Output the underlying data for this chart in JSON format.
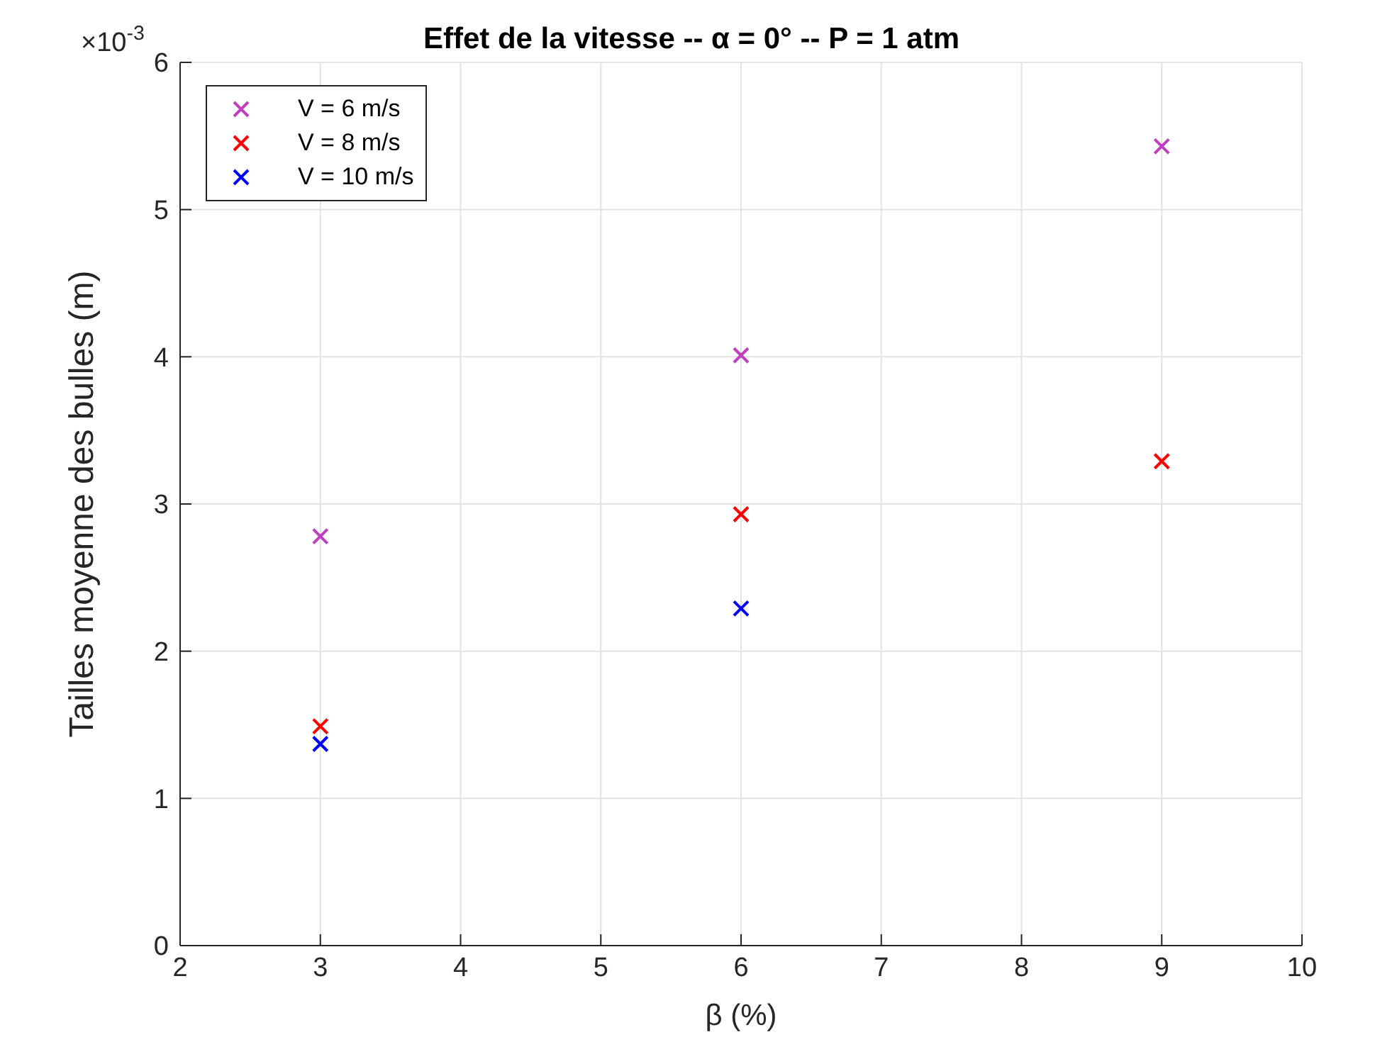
{
  "chart_data": {
    "type": "scatter",
    "title": "Effet de la vitesse -- α = 0° -- P = 1 atm",
    "xlabel": "β (%)",
    "ylabel": "Tailles moyenne des bulles (m)",
    "annotations": [
      "×10$^{-3}$"
    ],
    "series": [
      {
        "name": "V = 6 m/s",
        "color": "#bf40bf",
        "x": [
          3,
          6,
          9
        ],
        "values": [
          2.78,
          4.01,
          5.43
        ]
      },
      {
        "name": "V = 8 m/s",
        "color": "#ff0000",
        "x": [
          3,
          6,
          9
        ],
        "values": [
          1.49,
          2.93,
          3.29
        ]
      },
      {
        "name": "V = 10 m/s",
        "color": "#0000ff",
        "x": [
          3,
          6
        ],
        "values": [
          1.37,
          2.29
        ]
      }
    ],
    "xlim": [
      2,
      10
    ],
    "xticks": [
      2,
      3,
      4,
      5,
      6,
      7,
      8,
      9,
      10
    ],
    "ylim": [
      0,
      6
    ],
    "yticks": [
      0,
      1,
      2,
      3,
      4,
      5,
      6
    ],
    "grid": true,
    "legend": "top left",
    "marker": "cross"
  }
}
